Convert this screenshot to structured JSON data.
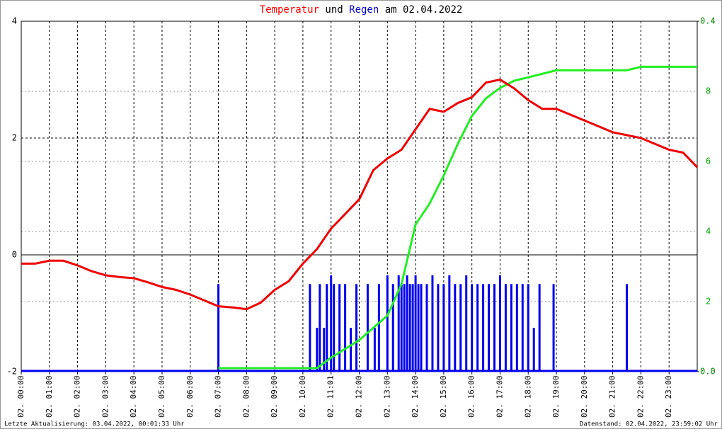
{
  "chart_data": {
    "type": "line",
    "title_parts": [
      {
        "text": "Temperatur",
        "color": "#ff0000"
      },
      {
        "text": "und",
        "color": "#000000"
      },
      {
        "text": "Regen",
        "color": "#0000cc"
      },
      {
        "text": "am 02.04.2022",
        "color": "#000000"
      }
    ],
    "xlim": [
      0,
      24
    ],
    "xticks": [
      {
        "value": 0,
        "label": "02. 00:00"
      },
      {
        "value": 1,
        "label": "02. 01:00"
      },
      {
        "value": 2,
        "label": "02. 02:00"
      },
      {
        "value": 3,
        "label": "02. 03:00"
      },
      {
        "value": 4,
        "label": "02. 04:00"
      },
      {
        "value": 5,
        "label": "02. 05:00"
      },
      {
        "value": 6,
        "label": "02. 06:00"
      },
      {
        "value": 7,
        "label": "02. 07:00"
      },
      {
        "value": 8,
        "label": "02. 08:00"
      },
      {
        "value": 9,
        "label": "02. 09:00"
      },
      {
        "value": 10,
        "label": "02. 10:00"
      },
      {
        "value": 11,
        "label": "02. 11:01"
      },
      {
        "value": 12,
        "label": "02. 12:00"
      },
      {
        "value": 13,
        "label": "02. 13:00"
      },
      {
        "value": 14,
        "label": "02. 14:00"
      },
      {
        "value": 15,
        "label": "02. 15:00"
      },
      {
        "value": 16,
        "label": "02. 16:00"
      },
      {
        "value": 17,
        "label": "02. 17:00"
      },
      {
        "value": 18,
        "label": "02. 18:00"
      },
      {
        "value": 19,
        "label": "02. 19:00"
      },
      {
        "value": 20,
        "label": "02. 20:00"
      },
      {
        "value": 21,
        "label": "02. 21:00"
      },
      {
        "value": 22,
        "label": "02. 22:00"
      },
      {
        "value": 23,
        "label": "02. 23:00"
      }
    ],
    "ylim": [
      -2,
      4
    ],
    "yticks": [
      -2,
      0,
      2,
      4
    ],
    "y2lim": [
      0,
      0.4
    ],
    "y2ticks": [
      {
        "value": 0,
        "label": "0.0"
      },
      0.4
    ],
    "y3lim": [
      0,
      10
    ],
    "y3ticks": [
      2,
      4,
      6,
      8
    ],
    "y3color": "#00aa00",
    "grid": true,
    "series": [
      {
        "type": "bar",
        "axis": "y2",
        "color": "#0000ee",
        "x": [
          7.0,
          10.25,
          10.5,
          10.6,
          10.75,
          10.85,
          11.0,
          11.1,
          11.3,
          11.5,
          11.7,
          11.9,
          12.3,
          12.55,
          12.7,
          13.0,
          13.2,
          13.4,
          13.5,
          13.6,
          13.7,
          13.8,
          13.9,
          14.0,
          14.1,
          14.2,
          14.4,
          14.6,
          14.8,
          15.0,
          15.2,
          15.4,
          15.6,
          15.8,
          16.0,
          16.2,
          16.4,
          16.6,
          16.8,
          17.0,
          17.2,
          17.4,
          17.6,
          17.8,
          18.0,
          18.2,
          18.4,
          18.9,
          21.5
        ],
        "values": [
          0.1,
          0.1,
          0.05,
          0.1,
          0.05,
          0.1,
          0.11,
          0.1,
          0.1,
          0.1,
          0.05,
          0.1,
          0.1,
          0.05,
          0.1,
          0.11,
          0.1,
          0.11,
          0.1,
          0.1,
          0.11,
          0.1,
          0.1,
          0.11,
          0.1,
          0.1,
          0.1,
          0.11,
          0.1,
          0.1,
          0.11,
          0.1,
          0.1,
          0.11,
          0.1,
          0.1,
          0.1,
          0.1,
          0.1,
          0.11,
          0.1,
          0.1,
          0.1,
          0.1,
          0.1,
          0.05,
          0.1,
          0.1,
          0.1
        ]
      },
      {
        "type": "line",
        "axis": "y3",
        "color": "#22ee22",
        "x": [
          7,
          10.5,
          11,
          12,
          13,
          13.5,
          14,
          14.5,
          15,
          15.5,
          16,
          16.5,
          17,
          17.5,
          18,
          19,
          21.5,
          22,
          24
        ],
        "values": [
          0.1,
          0.1,
          0.4,
          0.9,
          1.6,
          2.5,
          4.2,
          4.8,
          5.6,
          6.5,
          7.3,
          7.8,
          8.1,
          8.3,
          8.4,
          8.6,
          8.6,
          8.7,
          8.7
        ]
      },
      {
        "type": "line",
        "axis": "y",
        "color": "#ee0000",
        "x": [
          0,
          0.5,
          1,
          1.5,
          2,
          2.5,
          3,
          3.5,
          4,
          4.5,
          5,
          5.5,
          6,
          6.5,
          7,
          7.5,
          8,
          8.5,
          9,
          9.5,
          10,
          10.5,
          11,
          11.5,
          12,
          12.5,
          13,
          13.5,
          14,
          14.5,
          15,
          15.5,
          16,
          16.5,
          17,
          17.5,
          18,
          18.5,
          19,
          19.5,
          20,
          20.5,
          21,
          21.5,
          22,
          22.5,
          23,
          23.5,
          24
        ],
        "values": [
          -0.15,
          -0.15,
          -0.1,
          -0.1,
          -0.18,
          -0.28,
          -0.35,
          -0.38,
          -0.4,
          -0.47,
          -0.55,
          -0.6,
          -0.68,
          -0.78,
          -0.88,
          -0.9,
          -0.93,
          -0.82,
          -0.6,
          -0.45,
          -0.15,
          0.1,
          0.45,
          0.7,
          0.95,
          1.45,
          1.65,
          1.8,
          2.15,
          2.5,
          2.45,
          2.6,
          2.7,
          2.95,
          3.0,
          2.85,
          2.65,
          2.5,
          2.5,
          2.4,
          2.3,
          2.2,
          2.1,
          2.05,
          2.0,
          1.9,
          1.8,
          1.75,
          1.5
        ]
      }
    ],
    "footer_left": "Letzte Aktualisierung: 03.04.2022, 00:01:33 Uhr",
    "footer_right": "Datenstand: 02.04.2022, 23:59:02 Uhr"
  }
}
